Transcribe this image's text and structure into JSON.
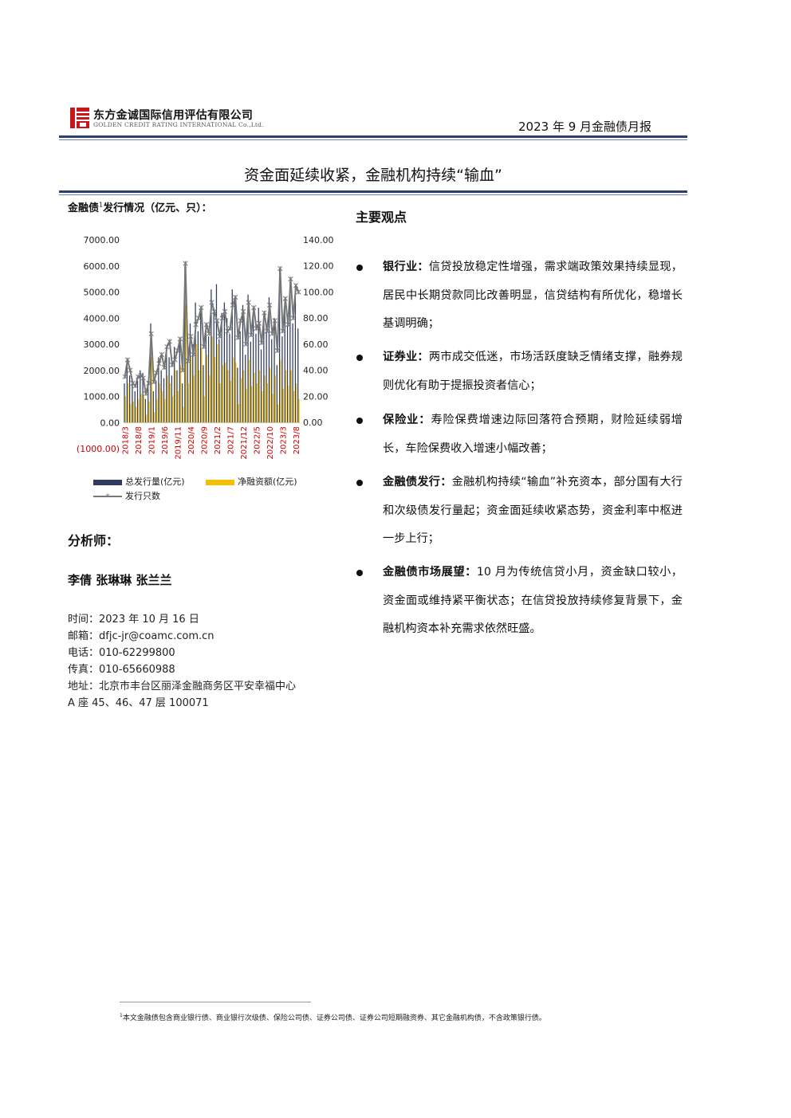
{
  "header": {
    "company_cn": "东方金诚国际信用评估有限公司",
    "company_en": "GOLDEN CREDIT RATING INTERNATIONAL Co.,Ltd.",
    "report_name": "2023 年 9 月金融债月报",
    "logo_icon": "golden-credit-logo",
    "logo_color": "#c8161d",
    "rule_color": "#2b3f73"
  },
  "title": "资金面延续收紧，金融机构持续“输血”",
  "chart_caption": {
    "prefix": "金融债",
    "footnote_mark": "1",
    "suffix": "发行情况（亿元、只）："
  },
  "chart_data": {
    "type": "bar",
    "title": "",
    "x_tick_labels": [
      "2018/3",
      "2018/8",
      "2019/1",
      "2019/6",
      "2019/11",
      "2020/4",
      "2020/9",
      "2021/2",
      "2021/7",
      "2021/12",
      "2022/5",
      "2022/10",
      "2023/3",
      "2023/8"
    ],
    "x": [
      "2018/3",
      "2018/4",
      "2018/5",
      "2018/6",
      "2018/7",
      "2018/8",
      "2018/9",
      "2018/10",
      "2018/11",
      "2018/12",
      "2019/1",
      "2019/2",
      "2019/3",
      "2019/4",
      "2019/5",
      "2019/6",
      "2019/7",
      "2019/8",
      "2019/9",
      "2019/10",
      "2019/11",
      "2019/12",
      "2020/1",
      "2020/2",
      "2020/3",
      "2020/4",
      "2020/5",
      "2020/6",
      "2020/7",
      "2020/8",
      "2020/9",
      "2020/10",
      "2020/11",
      "2020/12",
      "2021/1",
      "2021/2",
      "2021/3",
      "2021/4",
      "2021/5",
      "2021/6",
      "2021/7",
      "2021/8",
      "2021/9",
      "2021/10",
      "2021/11",
      "2021/12",
      "2022/1",
      "2022/2",
      "2022/3",
      "2022/4",
      "2022/5",
      "2022/6",
      "2022/7",
      "2022/8",
      "2022/9",
      "2022/10",
      "2022/11",
      "2022/12",
      "2023/1",
      "2023/2",
      "2023/3",
      "2023/4",
      "2023/5",
      "2023/6",
      "2023/7",
      "2023/8",
      "2023/9"
    ],
    "series": [
      {
        "name": "总发行量(亿元)",
        "axis": "left",
        "kind": "bar",
        "color": "#2e3a5e",
        "values": [
          1500,
          2400,
          1800,
          1500,
          1200,
          1600,
          2000,
          1900,
          900,
          1600,
          3800,
          1200,
          1600,
          2500,
          2000,
          1700,
          2800,
          2500,
          1800,
          2900,
          2000,
          3200,
          1500,
          6000,
          2500,
          3800,
          3000,
          4600,
          3500,
          4200,
          2200,
          3800,
          3300,
          5100,
          4200,
          5300,
          3200,
          4200,
          4600,
          4000,
          3400,
          5100,
          4800,
          2100,
          3500,
          4500,
          2600,
          4900,
          3100,
          4400,
          3400,
          4400,
          2800,
          4100,
          3500,
          4800,
          3200,
          4000,
          2200,
          5900,
          3300,
          4700,
          3700,
          5400,
          3800,
          5200,
          3600
        ]
      },
      {
        "name": "净融资额(亿元)",
        "axis": "left",
        "kind": "bar",
        "color": "#f2c000",
        "values": [
          1000,
          1500,
          700,
          800,
          600,
          900,
          1100,
          1000,
          300,
          800,
          2500,
          400,
          900,
          1500,
          1200,
          900,
          1800,
          1500,
          1000,
          2000,
          1200,
          2200,
          600,
          4500,
          1500,
          2500,
          1800,
          3000,
          2000,
          2800,
          1000,
          2600,
          1800,
          3300,
          2500,
          3000,
          1500,
          2200,
          2300,
          2000,
          1600,
          2500,
          2300,
          700,
          1700,
          2000,
          1300,
          2400,
          1400,
          1900,
          1500,
          2000,
          1200,
          1800,
          1500,
          2100,
          1100,
          1800,
          700,
          2400,
          1300,
          2000,
          1400,
          2000,
          1200,
          1500,
          900
        ]
      },
      {
        "name": "发行只数",
        "axis": "right",
        "kind": "line",
        "color": "#777777",
        "values": [
          35,
          48,
          40,
          30,
          28,
          35,
          36,
          34,
          22,
          30,
          68,
          31,
          38,
          45,
          52,
          42,
          58,
          62,
          44,
          48,
          55,
          64,
          40,
          122,
          47,
          66,
          52,
          75,
          80,
          88,
          58,
          75,
          68,
          92,
          85,
          78,
          66,
          80,
          85,
          70,
          72,
          90,
          96,
          65,
          78,
          85,
          60,
          92,
          67,
          88,
          72,
          76,
          61,
          84,
          70,
          90,
          68,
          78,
          55,
          118,
          70,
          95,
          75,
          110,
          80,
          105,
          100
        ]
      }
    ],
    "left_axis": {
      "ylim": [
        -1000,
        7000
      ],
      "ticks": [
        "7000.00",
        "6000.00",
        "5000.00",
        "4000.00",
        "3000.00",
        "2000.00",
        "1000.00",
        "0.00",
        "(1000.00)"
      ]
    },
    "right_axis": {
      "ylim": [
        0,
        140
      ],
      "ticks": [
        "140.00",
        "120.00",
        "100.00",
        "80.00",
        "60.00",
        "40.00",
        "20.00",
        "0.00"
      ]
    },
    "legend_placement": "bottom",
    "grid": false
  },
  "analysts": {
    "label": "分析师：",
    "names": "李倩  张琳琳  张兰兰"
  },
  "contact": {
    "date": "时间：2023 年 10 月 16 日",
    "email": "邮箱：dfjc-jr@coamc.com.cn",
    "phone": "电话：010-62299800",
    "fax": "传真：010-65660988",
    "address_line1": "地址：北京市丰台区丽泽金融商务区平安幸福中心",
    "address_line2": "A 座 45、46、47 层   100071"
  },
  "key_points": {
    "title": "主要观点",
    "items": [
      {
        "label": "银行业：",
        "text": "信贷投放稳定性增强，需求端政策效果持续显现，居民中长期贷款同比改善明显，信贷结构有所优化，稳增长基调明确；"
      },
      {
        "label": "证券业：",
        "text": "两市成交低迷，市场活跃度缺乏情绪支撑，融券规则优化有助于提振投资者信心；"
      },
      {
        "label": "保险业：",
        "text": "寿险保费增速边际回落符合预期，财险延续弱增长，车险保费收入增速小幅改善；"
      },
      {
        "label": "金融债发行：",
        "text": "金融机构持续“输血”补充资本，部分国有大行和次级债发行量起；资金面延续收紧态势，资金利率中枢进一步上行；"
      },
      {
        "label": "金融债市场展望：",
        "text": "10 月为传统信贷小月，资金缺口较小，资金面或维持紧平衡状态；在信贷投放持续修复背景下，金融机构资本补充需求依然旺盛。"
      }
    ]
  },
  "footnote": {
    "mark": "1",
    "text": "本文金融债包含商业银行债、商业银行次级债、保险公司债、证券公司债、证券公司短期融资券、其它金融机构债，不含政策银行债。"
  }
}
